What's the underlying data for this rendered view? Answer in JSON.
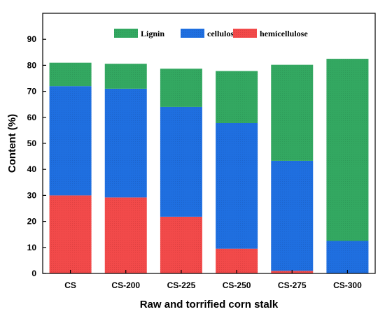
{
  "chart_data": {
    "type": "bar",
    "stacked": true,
    "categories": [
      "CS",
      "CS-200",
      "CS-225",
      "CS-250",
      "CS-275",
      "CS-300"
    ],
    "series": [
      {
        "name": "hemicellulose",
        "color": "#f24a4a",
        "values": [
          30.0,
          29.2,
          21.8,
          9.5,
          1.0,
          0.0
        ]
      },
      {
        "name": "cellulose",
        "color": "#1f6fe0",
        "values": [
          42.0,
          41.8,
          42.2,
          48.3,
          42.3,
          12.5
        ]
      },
      {
        "name": "Lignin",
        "color": "#33a861",
        "values": [
          9.0,
          9.6,
          14.7,
          20.0,
          36.9,
          70.0
        ]
      }
    ],
    "legend_order": [
      "Lignin",
      "cellulose",
      "hemicellulose"
    ],
    "legend_position": "top",
    "xlabel": "Raw and torrified corn stalk",
    "ylabel": "Content (%)",
    "ylim": [
      0,
      100
    ],
    "yticks": [
      0,
      10,
      20,
      30,
      40,
      50,
      60,
      70,
      80,
      90
    ],
    "grid": false
  }
}
